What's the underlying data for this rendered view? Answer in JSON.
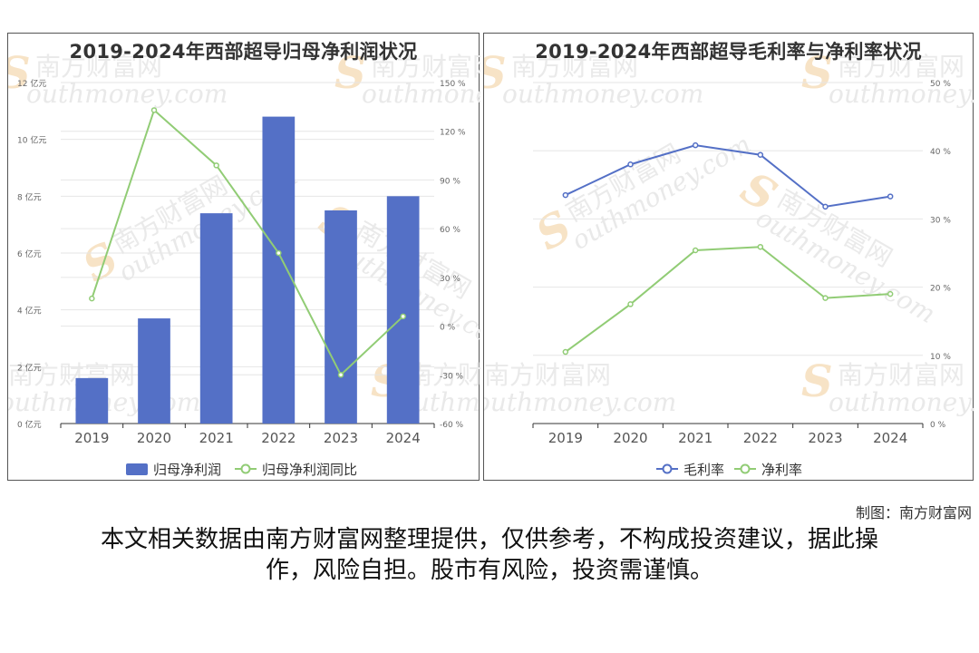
{
  "watermark": {
    "cn": "南方财富网",
    "en": "outhmoney.com",
    "s": "S"
  },
  "credit": "制图：南方财富网",
  "disclaimer": {
    "line1": "本文相关数据由南方财富网整理提供，仅供参考，不构成投资建议，据此操",
    "line2": "作，风险自担。股市有风险，投资需谨慎。"
  },
  "colors": {
    "bar": "#5470c6",
    "green": "#91cc75",
    "blue": "#5470c6",
    "grid": "#e6e6e6",
    "axis": "#666666"
  },
  "chart_data": [
    {
      "id": "left",
      "type": "bar",
      "title": "2019-2024年西部超导归母净利润状况",
      "categories": [
        "2019",
        "2020",
        "2021",
        "2022",
        "2023",
        "2024"
      ],
      "y_left": {
        "ticks": [
          "0 亿元",
          "2 亿元",
          "4 亿元",
          "6 亿元",
          "8 亿元",
          "10 亿元",
          "12 亿元"
        ],
        "min": 0,
        "max": 12
      },
      "y_right": {
        "ticks": [
          "-60 %",
          "-30 %",
          "0 %",
          "30 %",
          "60 %",
          "90 %",
          "120 %",
          "150 %"
        ],
        "min": -60,
        "max": 150
      },
      "series": [
        {
          "name": "归母净利润",
          "type": "bar",
          "axis": "left",
          "values": [
            1.6,
            3.7,
            7.4,
            10.8,
            7.5,
            8.0
          ]
        },
        {
          "name": "归母净利润同比",
          "type": "line",
          "axis": "right",
          "values": [
            17,
            133,
            99,
            45,
            -30,
            6
          ]
        }
      ],
      "legend": "bottom-center"
    },
    {
      "id": "right",
      "type": "line",
      "title": "2019-2024年西部超导毛利率与净利率状况",
      "categories": [
        "2019",
        "2020",
        "2021",
        "2022",
        "2023",
        "2024"
      ],
      "y_right": {
        "ticks": [
          "0 %",
          "10 %",
          "20 %",
          "30 %",
          "40 %",
          "50 %"
        ],
        "min": 0,
        "max": 50
      },
      "series": [
        {
          "name": "毛利率",
          "type": "line",
          "axis": "right",
          "values": [
            33.5,
            38.0,
            40.8,
            39.4,
            31.8,
            33.3
          ]
        },
        {
          "name": "净利率",
          "type": "line",
          "axis": "right",
          "values": [
            10.5,
            17.5,
            25.4,
            25.9,
            18.4,
            19.0
          ]
        }
      ],
      "legend": "bottom-center"
    }
  ]
}
